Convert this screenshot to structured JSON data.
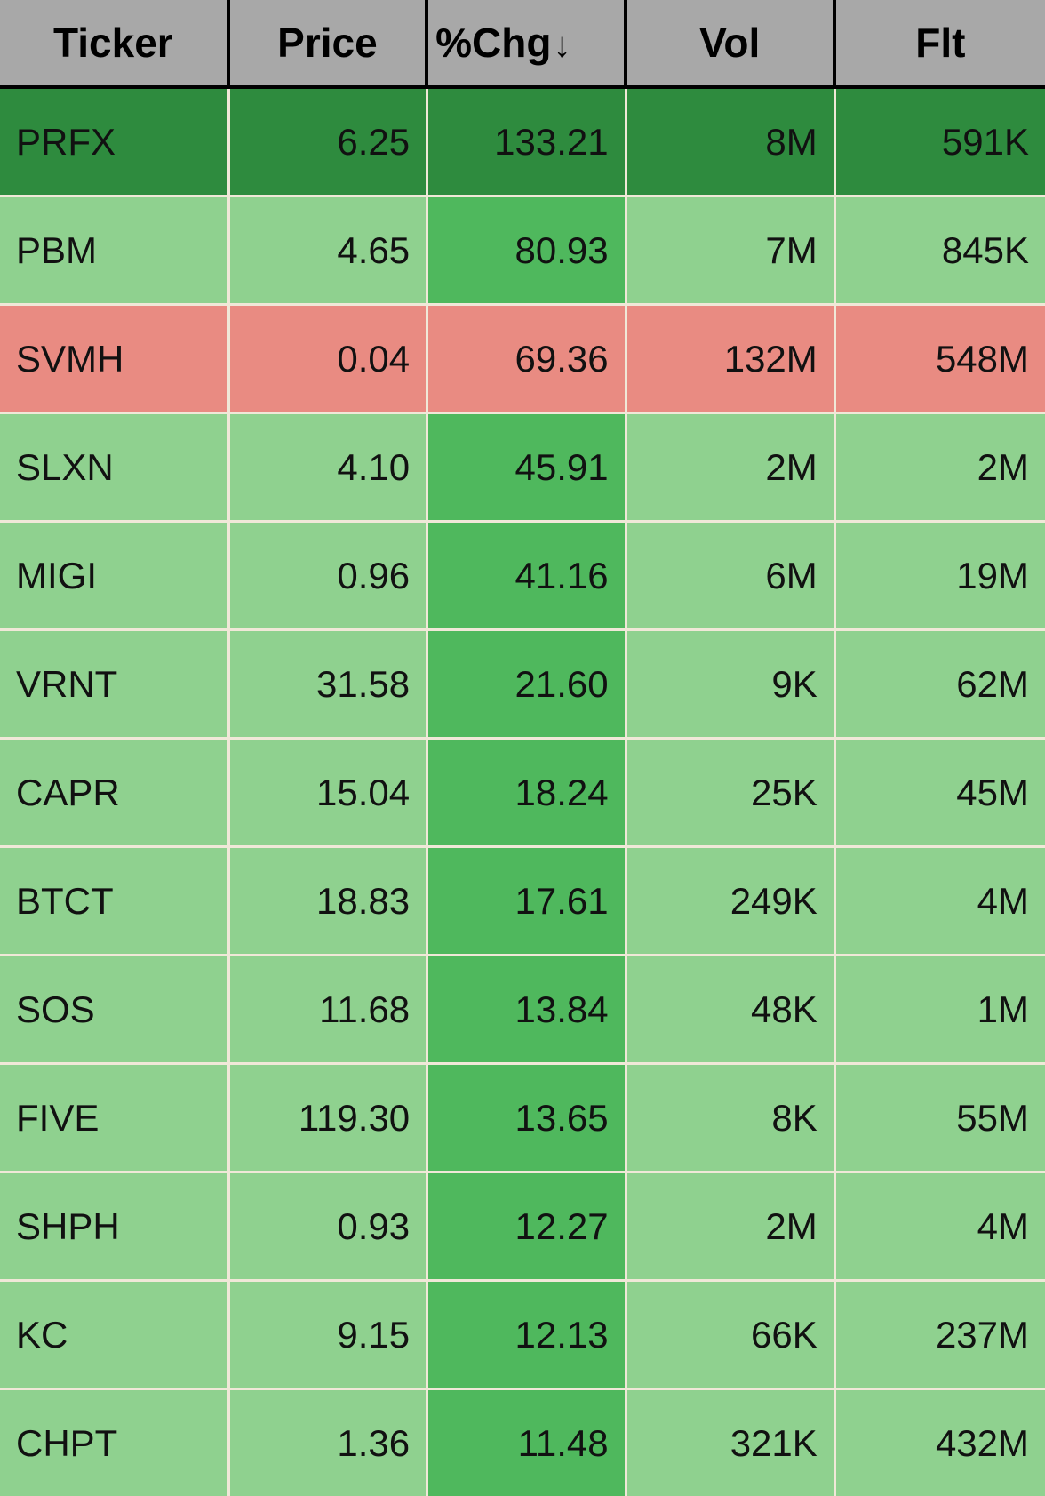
{
  "table": {
    "columns": [
      {
        "label": "Ticker",
        "width": "22%",
        "align": "center"
      },
      {
        "label": "Price",
        "width": "19%",
        "align": "center"
      },
      {
        "label": "%Chg",
        "width": "19%",
        "align": "left",
        "sort": "desc",
        "sort_glyph": "↓"
      },
      {
        "label": "Vol",
        "width": "20%",
        "align": "center"
      },
      {
        "label": "Flt",
        "width": "20%",
        "align": "center"
      }
    ],
    "colors": {
      "header_bg": "#a8a8a8",
      "dark_green": "#2e8b3e",
      "mid_green": "#4fb85d",
      "light_green": "#8fd18f",
      "salmon": "#e98b82",
      "grid": "#f0e8d8",
      "text": "#111111"
    },
    "rows": [
      {
        "ticker": "PRFX",
        "price": "6.25",
        "chg": "133.21",
        "vol": "8M",
        "flt": "591K",
        "bg": [
          "dark_green",
          "dark_green",
          "dark_green",
          "dark_green",
          "dark_green"
        ]
      },
      {
        "ticker": "PBM",
        "price": "4.65",
        "chg": "80.93",
        "vol": "7M",
        "flt": "845K",
        "bg": [
          "light_green",
          "light_green",
          "mid_green",
          "light_green",
          "light_green"
        ]
      },
      {
        "ticker": "SVMH",
        "price": "0.04",
        "chg": "69.36",
        "vol": "132M",
        "flt": "548M",
        "bg": [
          "salmon",
          "salmon",
          "salmon",
          "salmon",
          "salmon"
        ]
      },
      {
        "ticker": "SLXN",
        "price": "4.10",
        "chg": "45.91",
        "vol": "2M",
        "flt": "2M",
        "bg": [
          "light_green",
          "light_green",
          "mid_green",
          "light_green",
          "light_green"
        ]
      },
      {
        "ticker": "MIGI",
        "price": "0.96",
        "chg": "41.16",
        "vol": "6M",
        "flt": "19M",
        "bg": [
          "light_green",
          "light_green",
          "mid_green",
          "light_green",
          "light_green"
        ]
      },
      {
        "ticker": "VRNT",
        "price": "31.58",
        "chg": "21.60",
        "vol": "9K",
        "flt": "62M",
        "bg": [
          "light_green",
          "light_green",
          "mid_green",
          "light_green",
          "light_green"
        ]
      },
      {
        "ticker": "CAPR",
        "price": "15.04",
        "chg": "18.24",
        "vol": "25K",
        "flt": "45M",
        "bg": [
          "light_green",
          "light_green",
          "mid_green",
          "light_green",
          "light_green"
        ]
      },
      {
        "ticker": "BTCT",
        "price": "18.83",
        "chg": "17.61",
        "vol": "249K",
        "flt": "4M",
        "bg": [
          "light_green",
          "light_green",
          "mid_green",
          "light_green",
          "light_green"
        ]
      },
      {
        "ticker": "SOS",
        "price": "11.68",
        "chg": "13.84",
        "vol": "48K",
        "flt": "1M",
        "bg": [
          "light_green",
          "light_green",
          "mid_green",
          "light_green",
          "light_green"
        ]
      },
      {
        "ticker": "FIVE",
        "price": "119.30",
        "chg": "13.65",
        "vol": "8K",
        "flt": "55M",
        "bg": [
          "light_green",
          "light_green",
          "mid_green",
          "light_green",
          "light_green"
        ]
      },
      {
        "ticker": "SHPH",
        "price": "0.93",
        "chg": "12.27",
        "vol": "2M",
        "flt": "4M",
        "bg": [
          "light_green",
          "light_green",
          "mid_green",
          "light_green",
          "light_green"
        ]
      },
      {
        "ticker": "KC",
        "price": "9.15",
        "chg": "12.13",
        "vol": "66K",
        "flt": "237M",
        "bg": [
          "light_green",
          "light_green",
          "mid_green",
          "light_green",
          "light_green"
        ]
      },
      {
        "ticker": "CHPT",
        "price": "1.36",
        "chg": "11.48",
        "vol": "321K",
        "flt": "432M",
        "bg": [
          "light_green",
          "light_green",
          "mid_green",
          "light_green",
          "light_green"
        ]
      }
    ]
  }
}
